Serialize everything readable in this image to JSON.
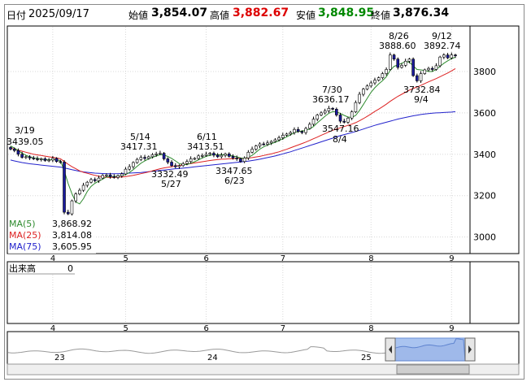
{
  "header": {
    "date_label": "日付",
    "date": "2025/09/17",
    "open_label": "始値",
    "open": "3,854.07",
    "high_label": "高値",
    "high": "3,882.67",
    "low_label": "安値",
    "low": "3,848.95",
    "close_label": "終値",
    "close": "3,876.34"
  },
  "colors": {
    "ma5": "#2e8b2e",
    "ma25": "#dd2222",
    "ma75": "#2222cc",
    "high": "#dd0000",
    "low": "#008800",
    "candle_up": "#ffffff",
    "candle_down": "#1a1a9c"
  },
  "legend": [
    {
      "name": "MA(5)",
      "value": "3,868.92"
    },
    {
      "name": "MA(25)",
      "value": "3,814.08"
    },
    {
      "name": "MA(75)",
      "value": "3,605.95"
    }
  ],
  "volume_label": "出来高",
  "volume_value": "0",
  "navigator": {
    "year_labels": [
      "23",
      "24",
      "25"
    ]
  },
  "chart_data": {
    "type": "candlestick",
    "x_tick_labels": [
      "4",
      "5",
      "6",
      "7",
      "8",
      "9"
    ],
    "ylim": [
      2920,
      4020
    ],
    "y_ticks": [
      3000,
      3200,
      3400,
      3600,
      3800
    ],
    "annotations": [
      {
        "date": "3/19",
        "value": "3439.05"
      },
      {
        "date": "5/14",
        "value": "3417.31"
      },
      {
        "date": "6/11",
        "value": "3413.51"
      },
      {
        "date": "5/27",
        "value": "3332.49"
      },
      {
        "date": "6/23",
        "value": "3347.65"
      },
      {
        "date": "7/30",
        "value": "3636.17"
      },
      {
        "date": "8/4",
        "value": "3547.16"
      },
      {
        "date": "8/26",
        "value": "3888.60"
      },
      {
        "date": "9/12",
        "value": "3892.74"
      },
      {
        "date": "9/4",
        "value": "3732.84"
      }
    ],
    "close": [
      3425,
      3418,
      3400,
      3385,
      3388,
      3382,
      3378,
      3375,
      3378,
      3370,
      3372,
      3380,
      3365,
      3362,
      3120,
      3112,
      3175,
      3208,
      3226,
      3250,
      3265,
      3278,
      3272,
      3285,
      3298,
      3300,
      3292,
      3288,
      3296,
      3305,
      3328,
      3340,
      3360,
      3375,
      3385,
      3380,
      3388,
      3398,
      3402,
      3405,
      3378,
      3362,
      3345,
      3340,
      3345,
      3355,
      3365,
      3378,
      3380,
      3392,
      3394,
      3400,
      3405,
      3396,
      3388,
      3395,
      3402,
      3390,
      3382,
      3378,
      3365,
      3382,
      3410,
      3425,
      3440,
      3450,
      3448,
      3455,
      3462,
      3470,
      3480,
      3492,
      3498,
      3505,
      3520,
      3510,
      3505,
      3525,
      3545,
      3570,
      3590,
      3600,
      3610,
      3622,
      3618,
      3590,
      3560,
      3555,
      3575,
      3605,
      3650,
      3690,
      3715,
      3730,
      3745,
      3758,
      3770,
      3790,
      3810,
      3880,
      3860,
      3820,
      3830,
      3850,
      3860,
      3780,
      3755,
      3790,
      3808,
      3815,
      3810,
      3828,
      3870,
      3880,
      3866,
      3880,
      3876
    ],
    "ma5": [
      3440,
      3430,
      3418,
      3405,
      3395,
      3388,
      3382,
      3380,
      3377,
      3374,
      3373,
      3375,
      3372,
      3370,
      3320,
      3260,
      3210,
      3170,
      3160,
      3185,
      3220,
      3245,
      3260,
      3270,
      3280,
      3290,
      3292,
      3293,
      3295,
      3297,
      3302,
      3312,
      3326,
      3342,
      3357,
      3368,
      3378,
      3385,
      3392,
      3398,
      3396,
      3390,
      3380,
      3368,
      3355,
      3350,
      3350,
      3357,
      3364,
      3373,
      3382,
      3390,
      3395,
      3398,
      3397,
      3398,
      3397,
      3395,
      3392,
      3388,
      3382,
      3381,
      3386,
      3395,
      3410,
      3425,
      3436,
      3444,
      3452,
      3458,
      3466,
      3475,
      3484,
      3494,
      3504,
      3510,
      3512,
      3516,
      3522,
      3534,
      3552,
      3568,
      3584,
      3598,
      3606,
      3604,
      3598,
      3588,
      3580,
      3578,
      3588,
      3612,
      3640,
      3670,
      3700,
      3722,
      3740,
      3756,
      3775,
      3805,
      3825,
      3832,
      3840,
      3848,
      3845,
      3828,
      3810,
      3808,
      3805,
      3800,
      3800,
      3810,
      3825,
      3840,
      3852,
      3862,
      3869
    ],
    "ma25": [
      3430,
      3425,
      3420,
      3415,
      3410,
      3405,
      3400,
      3397,
      3394,
      3391,
      3388,
      3385,
      3382,
      3378,
      3365,
      3352,
      3340,
      3330,
      3320,
      3313,
      3308,
      3303,
      3298,
      3294,
      3291,
      3289,
      3288,
      3288,
      3289,
      3290,
      3292,
      3295,
      3298,
      3302,
      3306,
      3310,
      3315,
      3320,
      3325,
      3330,
      3334,
      3337,
      3340,
      3343,
      3346,
      3349,
      3352,
      3355,
      3358,
      3361,
      3364,
      3367,
      3370,
      3372,
      3374,
      3376,
      3377,
      3378,
      3379,
      3380,
      3380,
      3381,
      3382,
      3384,
      3387,
      3390,
      3394,
      3398,
      3402,
      3407,
      3412,
      3418,
      3424,
      3431,
      3438,
      3445,
      3452,
      3459,
      3467,
      3475,
      3483,
      3492,
      3500,
      3508,
      3516,
      3522,
      3528,
      3534,
      3540,
      3546,
      3553,
      3562,
      3572,
      3583,
      3595,
      3607,
      3618,
      3630,
      3642,
      3656,
      3668,
      3680,
      3690,
      3700,
      3710,
      3718,
      3725,
      3733,
      3742,
      3750,
      3758,
      3766,
      3775,
      3784,
      3793,
      3803,
      3814
    ],
    "ma75": [
      3372,
      3368,
      3364,
      3360,
      3357,
      3354,
      3352,
      3350,
      3348,
      3346,
      3344,
      3342,
      3340,
      3338,
      3334,
      3330,
      3326,
      3322,
      3318,
      3315,
      3313,
      3311,
      3309,
      3308,
      3307,
      3306,
      3306,
      3306,
      3306,
      3307,
      3308,
      3309,
      3310,
      3311,
      3312,
      3314,
      3316,
      3318,
      3320,
      3322,
      3324,
      3326,
      3328,
      3330,
      3331,
      3333,
      3335,
      3337,
      3339,
      3341,
      3343,
      3345,
      3347,
      3349,
      3351,
      3353,
      3355,
      3357,
      3359,
      3361,
      3363,
      3365,
      3367,
      3370,
      3373,
      3376,
      3380,
      3384,
      3388,
      3392,
      3397,
      3402,
      3407,
      3412,
      3418,
      3424,
      3430,
      3436,
      3442,
      3448,
      3454,
      3460,
      3466,
      3472,
      3478,
      3484,
      3490,
      3495,
      3500,
      3505,
      3510,
      3516,
      3522,
      3528,
      3534,
      3540,
      3545,
      3550,
      3555,
      3560,
      3565,
      3570,
      3574,
      3578,
      3582,
      3586,
      3589,
      3592,
      3595,
      3597,
      3599,
      3600,
      3601,
      3602,
      3603,
      3604,
      3606
    ]
  }
}
